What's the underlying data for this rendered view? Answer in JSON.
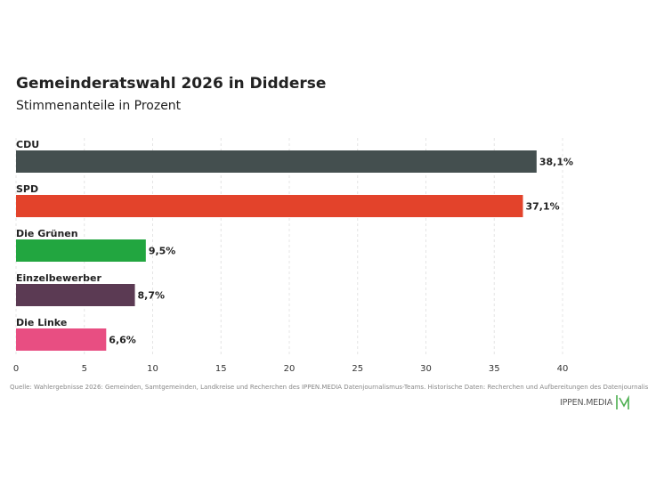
{
  "chart_data": {
    "type": "bar",
    "orientation": "horizontal",
    "title": "Gemeinderatswahl 2026 in Didderse",
    "subtitle": "Stimmenanteile in Prozent",
    "categories": [
      "CDU",
      "SPD",
      "Die Grünen",
      "Einzelbewerber",
      "Die Linke"
    ],
    "values": [
      38.1,
      37.1,
      9.5,
      8.7,
      6.6
    ],
    "value_labels": [
      "38,1%",
      "37,1%",
      "9,5%",
      "8,7%",
      "6,6%"
    ],
    "colors": [
      "#444f4f",
      "#e3432b",
      "#22a640",
      "#5b3a53",
      "#e84e82"
    ],
    "xlim": [
      0,
      40
    ],
    "xticks": [
      0,
      5,
      10,
      15,
      20,
      25,
      30,
      35,
      40
    ],
    "xtick_labels": [
      "0",
      "5",
      "10",
      "15",
      "20",
      "25",
      "30",
      "35",
      "40"
    ],
    "grid": true
  },
  "source": "Quelle: Wahlergebnisse 2026: Gemeinden, Samtgemeinden, Landkreise und Recherchen des IPPEN.MEDIA Datenjournalismus-Teams. Historische Daten: Recherchen und Aufbereitungen des Datenjournalismus-Teams",
  "logo": {
    "text": "IPPEN.MEDIA",
    "color": "#4caf50"
  }
}
